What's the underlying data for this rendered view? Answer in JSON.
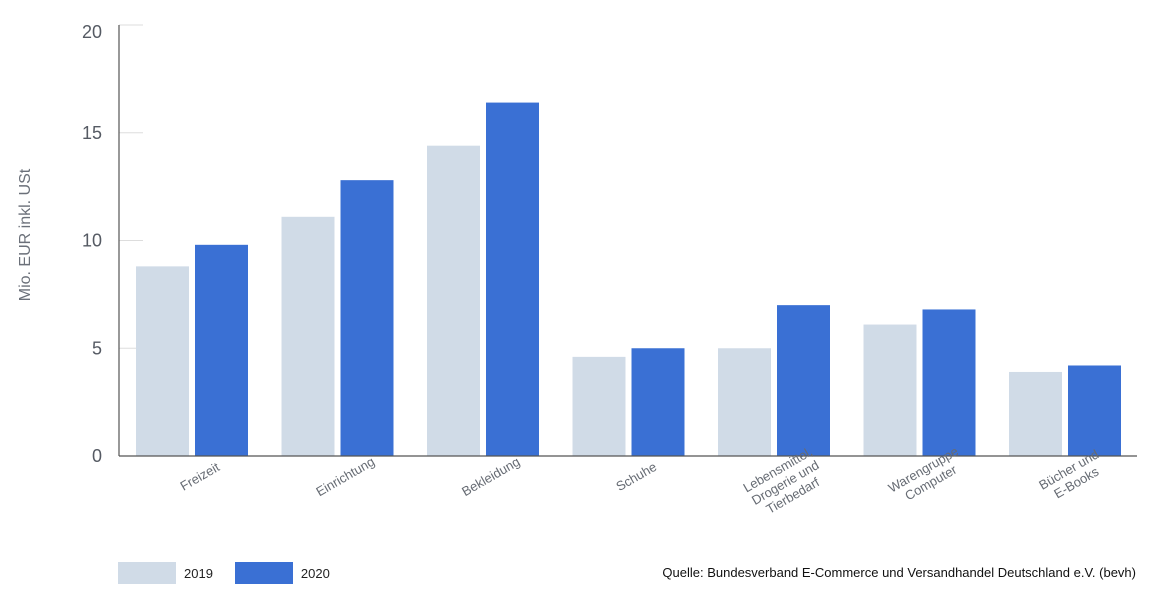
{
  "chart_data": {
    "type": "bar",
    "ylabel": "Mio. EUR inkl. USt",
    "ylim": [
      0,
      20
    ],
    "yticks": [
      0,
      5,
      10,
      15,
      20
    ],
    "categories": [
      [
        "Freizeit"
      ],
      [
        "Einrichtung"
      ],
      [
        "Bekleidung"
      ],
      [
        "Schuhe"
      ],
      [
        "Lebensmittel,",
        "Drogerie und",
        "Tierbedarf"
      ],
      [
        "Warengruppe",
        "Computer"
      ],
      [
        "Bücher und",
        "E-Books"
      ]
    ],
    "series": [
      {
        "name": "2019",
        "color": "#d0dbe7",
        "values": [
          8.8,
          11.1,
          14.4,
          4.6,
          5.0,
          6.1,
          3.9
        ]
      },
      {
        "name": "2020",
        "color": "#3a70d4",
        "values": [
          9.8,
          12.8,
          16.4,
          5.0,
          7.0,
          6.8,
          4.2
        ]
      }
    ]
  },
  "legend": {
    "items": [
      "2019",
      "2020"
    ]
  },
  "source": "Quelle: Bundesverband E-Commerce und Versandhandel Deutschland e.V. (bevh)"
}
